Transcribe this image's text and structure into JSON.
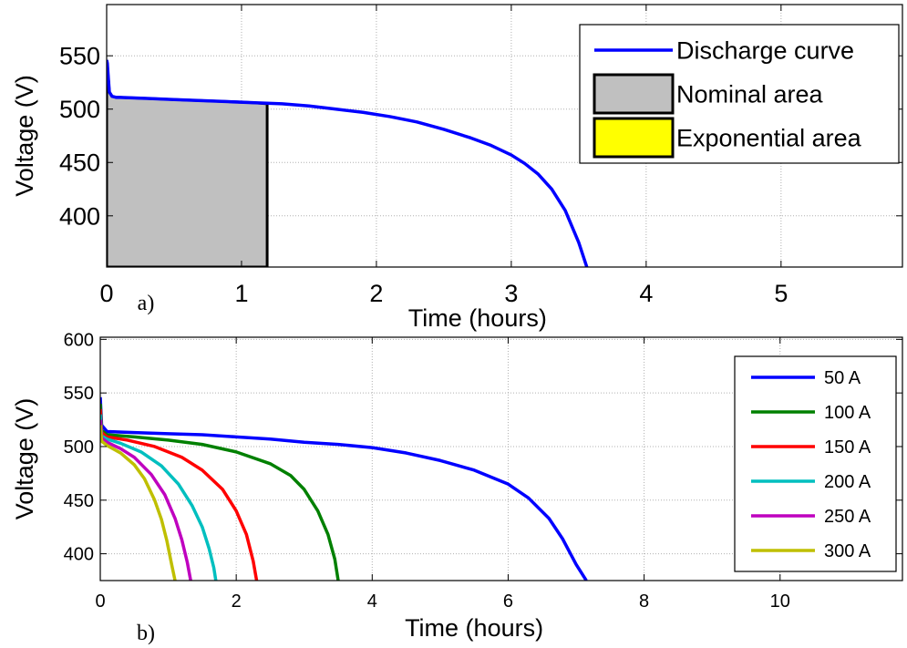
{
  "chart_data": [
    {
      "type": "line",
      "panel_label": "a)",
      "xlabel": "Time (hours)",
      "ylabel": "Voltage (V)",
      "xlim": [
        0,
        5.9
      ],
      "ylim": [
        352,
        598
      ],
      "xticks": [
        0,
        1,
        2,
        3,
        4,
        5
      ],
      "yticks": [
        400,
        450,
        500,
        550
      ],
      "grid": true,
      "legend_position": "top-right",
      "series": [
        {
          "name": "Discharge curve",
          "kind": "line",
          "color": "#0000ff",
          "x": [
            0,
            0.005,
            0.012,
            0.02,
            0.04,
            0.07,
            0.1,
            0.3,
            0.5,
            0.7,
            0.9,
            1.1,
            1.3,
            1.5,
            1.7,
            1.9,
            2.1,
            2.3,
            2.5,
            2.7,
            2.85,
            3.0,
            3.1,
            3.2,
            3.3,
            3.4,
            3.5,
            3.56
          ],
          "y": [
            546,
            543,
            530,
            516,
            512,
            511,
            511,
            510,
            509,
            508,
            507,
            506,
            505,
            503,
            500,
            497,
            493,
            488,
            481,
            473,
            466,
            457,
            449,
            439,
            425,
            405,
            375,
            352
          ]
        },
        {
          "name": "Nominal area",
          "kind": "area",
          "color": "#c0c0c0",
          "stroke": "#000000",
          "x": [
            0,
            0.012,
            0.02,
            0.04,
            0.07,
            0.1,
            0.3,
            0.5,
            0.7,
            0.9,
            1.1,
            1.19,
            1.19
          ],
          "y": [
            546,
            530,
            516,
            512,
            511,
            511,
            510,
            509,
            508,
            507,
            506,
            505,
            352
          ]
        },
        {
          "name": "Exponential area",
          "kind": "area",
          "color": "#ffff00",
          "stroke": "#000000",
          "x": [],
          "y": []
        }
      ]
    },
    {
      "type": "line",
      "panel_label": "b)",
      "xlabel": "Time (hours)",
      "ylabel": "Voltage (V)",
      "xlim": [
        0,
        11.8
      ],
      "ylim": [
        375,
        602
      ],
      "xticks": [
        0,
        2,
        4,
        6,
        8,
        10
      ],
      "yticks": [
        400,
        450,
        500,
        550,
        600
      ],
      "grid": true,
      "legend_position": "top-right",
      "series": [
        {
          "name": "50 A",
          "color": "#0000ff",
          "x": [
            0,
            0.02,
            0.1,
            0.5,
            1,
            1.5,
            2,
            2.5,
            3,
            3.5,
            4,
            4.5,
            5,
            5.5,
            6,
            6.3,
            6.6,
            6.8,
            7.0,
            7.15
          ],
          "y": [
            546,
            520,
            514,
            513,
            512,
            511,
            509,
            507,
            504,
            502,
            499,
            494,
            487,
            478,
            465,
            452,
            433,
            414,
            390,
            375
          ]
        },
        {
          "name": "100 A",
          "color": "#008000",
          "x": [
            0,
            0.02,
            0.1,
            0.5,
            1,
            1.5,
            2,
            2.5,
            2.8,
            3.0,
            3.2,
            3.35,
            3.45,
            3.5
          ],
          "y": [
            540,
            515,
            511,
            509,
            506,
            502,
            495,
            484,
            473,
            460,
            440,
            418,
            395,
            375
          ]
        },
        {
          "name": "150 A",
          "color": "#ff0000",
          "x": [
            0,
            0.02,
            0.1,
            0.4,
            0.8,
            1.2,
            1.5,
            1.8,
            2.0,
            2.15,
            2.25,
            2.3
          ],
          "y": [
            535,
            513,
            509,
            506,
            500,
            490,
            478,
            460,
            440,
            418,
            393,
            375
          ]
        },
        {
          "name": "200 A",
          "color": "#00bfbf",
          "x": [
            0,
            0.02,
            0.1,
            0.3,
            0.6,
            0.9,
            1.15,
            1.35,
            1.5,
            1.6,
            1.67,
            1.7
          ],
          "y": [
            530,
            510,
            507,
            503,
            495,
            482,
            465,
            445,
            425,
            405,
            387,
            375
          ]
        },
        {
          "name": "250 A",
          "color": "#bf00bf",
          "x": [
            0,
            0.02,
            0.1,
            0.3,
            0.5,
            0.75,
            0.95,
            1.1,
            1.2,
            1.28,
            1.33
          ],
          "y": [
            525,
            508,
            504,
            498,
            490,
            474,
            455,
            433,
            413,
            392,
            375
          ]
        },
        {
          "name": "300 A",
          "color": "#bfbf00",
          "x": [
            0,
            0.02,
            0.1,
            0.3,
            0.5,
            0.65,
            0.8,
            0.9,
            0.98,
            1.05,
            1.1
          ],
          "y": [
            520,
            505,
            501,
            494,
            483,
            470,
            450,
            432,
            412,
            390,
            375
          ]
        }
      ]
    }
  ]
}
